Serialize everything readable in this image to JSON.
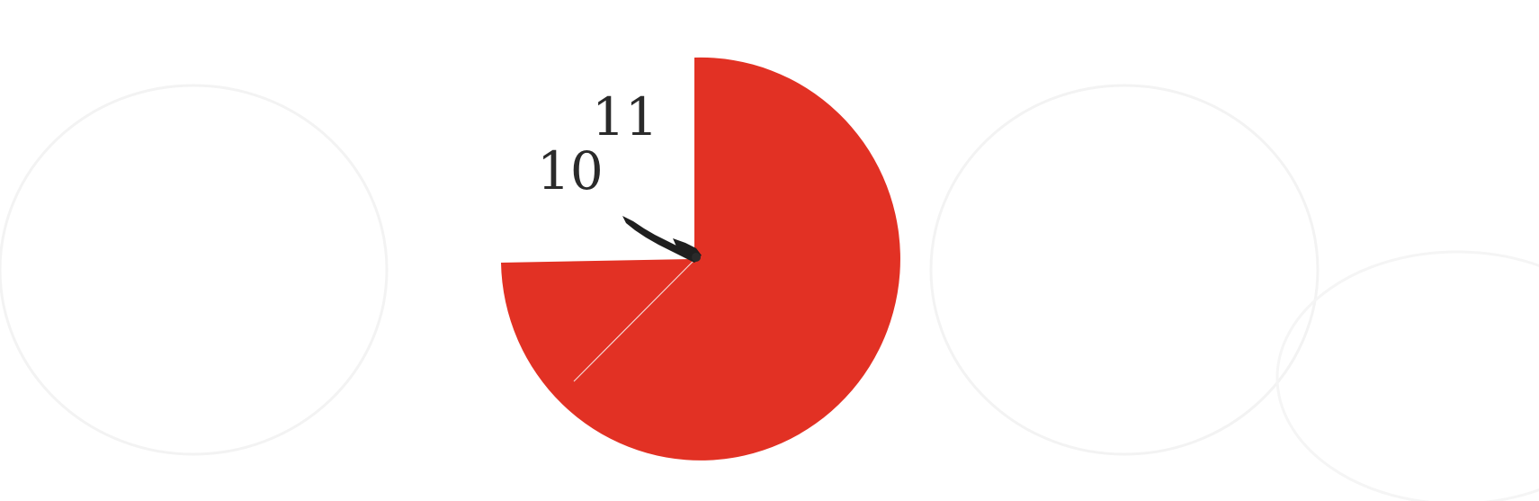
{
  "clock": {
    "numerals": {
      "ten": "10",
      "eleven": "11"
    },
    "face_color": "#e23124",
    "hand_color": "#1f1f1f",
    "ghost_color": "#f4f4f4"
  }
}
